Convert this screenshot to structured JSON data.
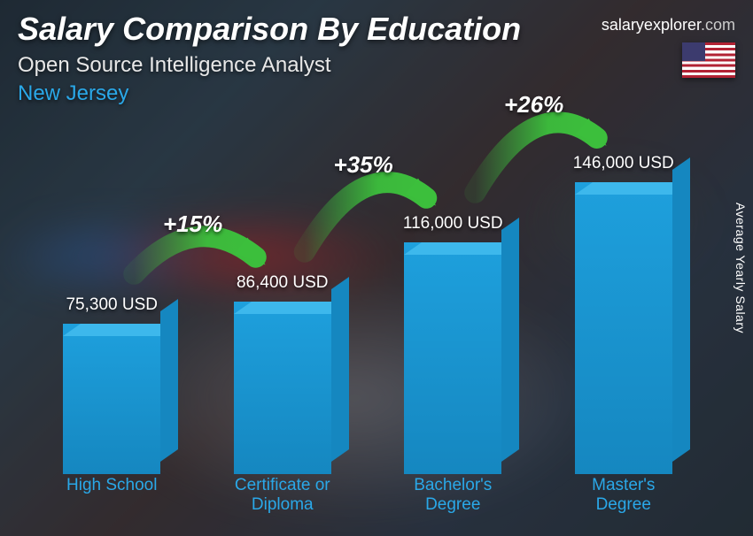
{
  "header": {
    "title": "Salary Comparison By Education",
    "subtitle": "Open Source Intelligence Analyst",
    "region": "New Jersey"
  },
  "brand": {
    "name": "salaryexplorer",
    "domain": ".com"
  },
  "y_axis_label": "Average Yearly Salary",
  "chart": {
    "type": "bar",
    "max_value": 146000,
    "bar_face_color": "#1ea0dd",
    "bar_top_color": "#3db8ec",
    "bar_side_color": "#1587c0",
    "label_color": "#2aa8e8",
    "value_color": "#ffffff",
    "categories": [
      {
        "label": "High School",
        "value": 75300,
        "value_label": "75,300 USD"
      },
      {
        "label": "Certificate or\nDiploma",
        "value": 86400,
        "value_label": "86,400 USD"
      },
      {
        "label": "Bachelor's\nDegree",
        "value": 116000,
        "value_label": "116,000 USD"
      },
      {
        "label": "Master's\nDegree",
        "value": 146000,
        "value_label": "146,000 USD"
      }
    ],
    "increments": [
      {
        "pct_label": "+15%",
        "arrow_color": "#3cbf3c"
      },
      {
        "pct_label": "+35%",
        "arrow_color": "#3cbf3c"
      },
      {
        "pct_label": "+26%",
        "arrow_color": "#3cbf3c"
      }
    ]
  }
}
